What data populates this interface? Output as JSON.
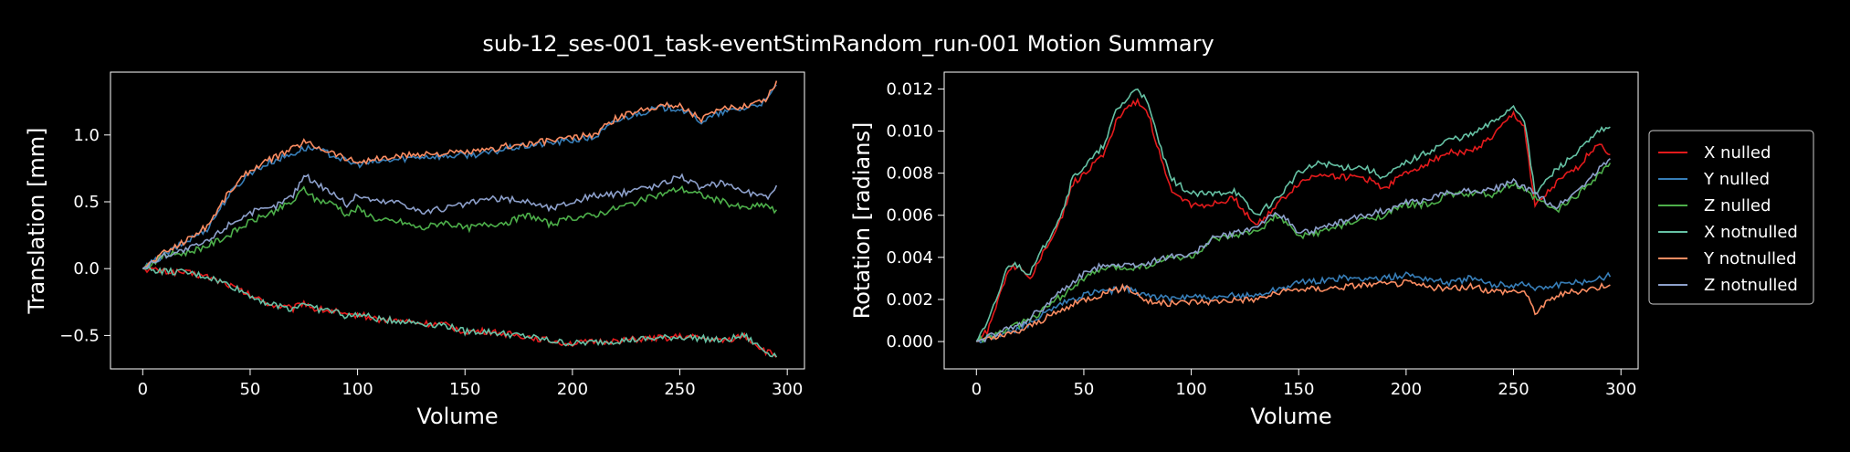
{
  "figure": {
    "title": "sub-12_ses-001_task-eventStimRandom_run-001 Motion Summary",
    "background": "#000000",
    "text_color": "#ffffff"
  },
  "series_colors": {
    "X nulled": "#e41a1c",
    "Y nulled": "#377eb8",
    "Z nulled": "#4daf4a",
    "X notnulled": "#66c2a5",
    "Y notnulled": "#fc8d62",
    "Z notnulled": "#8da0cb"
  },
  "chart_data": [
    {
      "type": "line",
      "xlabel": "Volume",
      "ylabel": "Translation [mm]",
      "xlim": [
        -15,
        308
      ],
      "ylim": [
        -0.75,
        1.47
      ],
      "xticks": [
        0,
        50,
        100,
        150,
        200,
        250,
        300
      ],
      "yticks": [
        -0.5,
        0.0,
        0.5,
        1.0
      ],
      "ytick_labels": [
        "−0.5",
        "0.0",
        "0.5",
        "1.0"
      ],
      "series": [
        {
          "name": "X nulled",
          "x": [
            0,
            10,
            20,
            30,
            40,
            50,
            60,
            70,
            75,
            80,
            90,
            95,
            100,
            110,
            120,
            130,
            140,
            150,
            160,
            170,
            180,
            190,
            200,
            210,
            220,
            230,
            240,
            250,
            260,
            270,
            280,
            290,
            295
          ],
          "y": [
            0,
            -0.02,
            -0.03,
            -0.06,
            -0.12,
            -0.2,
            -0.27,
            -0.3,
            -0.25,
            -0.3,
            -0.32,
            -0.36,
            -0.34,
            -0.38,
            -0.39,
            -0.41,
            -0.42,
            -0.47,
            -0.47,
            -0.49,
            -0.51,
            -0.54,
            -0.56,
            -0.55,
            -0.54,
            -0.53,
            -0.52,
            -0.51,
            -0.52,
            -0.54,
            -0.5,
            -0.62,
            -0.65
          ]
        },
        {
          "name": "Y nulled",
          "x": [
            0,
            10,
            20,
            30,
            40,
            50,
            60,
            70,
            75,
            80,
            90,
            95,
            100,
            110,
            120,
            130,
            140,
            150,
            160,
            170,
            180,
            190,
            200,
            210,
            220,
            230,
            240,
            250,
            255,
            260,
            270,
            280,
            290,
            295
          ],
          "y": [
            0,
            0.1,
            0.2,
            0.3,
            0.55,
            0.72,
            0.8,
            0.86,
            0.9,
            0.9,
            0.84,
            0.8,
            0.78,
            0.8,
            0.82,
            0.84,
            0.84,
            0.85,
            0.86,
            0.9,
            0.92,
            0.94,
            0.96,
            0.98,
            1.1,
            1.16,
            1.2,
            1.2,
            1.15,
            1.1,
            1.17,
            1.2,
            1.25,
            1.37
          ]
        },
        {
          "name": "Z nulled",
          "x": [
            0,
            10,
            20,
            30,
            40,
            50,
            60,
            70,
            75,
            80,
            90,
            95,
            100,
            110,
            120,
            130,
            140,
            150,
            160,
            170,
            180,
            190,
            200,
            210,
            220,
            230,
            240,
            250,
            260,
            270,
            280,
            290,
            295
          ],
          "y": [
            0,
            0.1,
            0.12,
            0.17,
            0.25,
            0.35,
            0.42,
            0.5,
            0.6,
            0.52,
            0.48,
            0.4,
            0.45,
            0.36,
            0.35,
            0.3,
            0.35,
            0.3,
            0.33,
            0.35,
            0.4,
            0.33,
            0.38,
            0.4,
            0.45,
            0.5,
            0.55,
            0.6,
            0.55,
            0.5,
            0.45,
            0.48,
            0.42
          ]
        },
        {
          "name": "X notnulled",
          "x": [
            0,
            10,
            20,
            30,
            40,
            50,
            60,
            70,
            75,
            80,
            90,
            95,
            100,
            110,
            120,
            130,
            140,
            150,
            160,
            170,
            180,
            190,
            200,
            210,
            220,
            230,
            240,
            250,
            260,
            270,
            280,
            290,
            295
          ],
          "y": [
            0,
            -0.02,
            -0.03,
            -0.06,
            -0.12,
            -0.2,
            -0.27,
            -0.3,
            -0.25,
            -0.3,
            -0.32,
            -0.36,
            -0.34,
            -0.38,
            -0.39,
            -0.41,
            -0.42,
            -0.47,
            -0.47,
            -0.49,
            -0.51,
            -0.54,
            -0.56,
            -0.55,
            -0.54,
            -0.53,
            -0.52,
            -0.51,
            -0.52,
            -0.54,
            -0.5,
            -0.62,
            -0.65
          ]
        },
        {
          "name": "Y notnulled",
          "x": [
            0,
            10,
            20,
            30,
            40,
            50,
            60,
            70,
            75,
            80,
            90,
            95,
            100,
            110,
            120,
            130,
            140,
            150,
            160,
            170,
            180,
            190,
            200,
            210,
            220,
            230,
            240,
            250,
            255,
            260,
            270,
            280,
            290,
            295
          ],
          "y": [
            0,
            0.12,
            0.21,
            0.32,
            0.57,
            0.74,
            0.82,
            0.9,
            0.95,
            0.92,
            0.86,
            0.82,
            0.8,
            0.82,
            0.84,
            0.86,
            0.86,
            0.87,
            0.88,
            0.92,
            0.93,
            0.96,
            0.98,
            1.0,
            1.12,
            1.18,
            1.22,
            1.22,
            1.17,
            1.12,
            1.19,
            1.22,
            1.27,
            1.4
          ]
        },
        {
          "name": "Z notnulled",
          "x": [
            0,
            10,
            20,
            30,
            40,
            50,
            60,
            70,
            75,
            80,
            90,
            95,
            100,
            110,
            120,
            130,
            140,
            150,
            160,
            170,
            180,
            190,
            200,
            210,
            220,
            230,
            240,
            250,
            260,
            270,
            280,
            290,
            295
          ],
          "y": [
            0,
            0.1,
            0.14,
            0.2,
            0.33,
            0.42,
            0.45,
            0.55,
            0.7,
            0.65,
            0.55,
            0.48,
            0.55,
            0.5,
            0.5,
            0.42,
            0.45,
            0.48,
            0.52,
            0.52,
            0.5,
            0.45,
            0.5,
            0.55,
            0.55,
            0.6,
            0.62,
            0.7,
            0.6,
            0.65,
            0.58,
            0.53,
            0.6
          ]
        }
      ]
    },
    {
      "type": "line",
      "xlabel": "Volume",
      "ylabel": "Rotation [radians]",
      "xlim": [
        -15,
        308
      ],
      "ylim": [
        -0.0013,
        0.0128
      ],
      "xticks": [
        0,
        50,
        100,
        150,
        200,
        250,
        300
      ],
      "yticks": [
        0.0,
        0.002,
        0.004,
        0.006,
        0.008,
        0.01,
        0.012
      ],
      "ytick_labels": [
        "0.000",
        "0.002",
        "0.004",
        "0.006",
        "0.008",
        "0.010",
        "0.012"
      ],
      "legend": {
        "placement": "right, outside"
      },
      "series": [
        {
          "name": "X nulled",
          "x": [
            0,
            5,
            10,
            15,
            20,
            25,
            30,
            35,
            40,
            45,
            50,
            55,
            60,
            65,
            70,
            75,
            80,
            85,
            90,
            100,
            110,
            120,
            130,
            140,
            150,
            160,
            170,
            180,
            190,
            200,
            210,
            220,
            230,
            240,
            250,
            255,
            260,
            270,
            280,
            290,
            295
          ],
          "y": [
            0,
            0.0005,
            0.002,
            0.0035,
            0.0035,
            0.003,
            0.004,
            0.005,
            0.006,
            0.0075,
            0.008,
            0.0085,
            0.009,
            0.0105,
            0.011,
            0.0115,
            0.0108,
            0.009,
            0.0073,
            0.0065,
            0.0065,
            0.0068,
            0.0055,
            0.0065,
            0.0075,
            0.008,
            0.0078,
            0.0078,
            0.0073,
            0.008,
            0.0085,
            0.009,
            0.009,
            0.0097,
            0.0108,
            0.0102,
            0.0064,
            0.0075,
            0.0083,
            0.0095,
            0.0088
          ]
        },
        {
          "name": "Y nulled",
          "x": [
            0,
            10,
            20,
            30,
            40,
            50,
            60,
            70,
            80,
            90,
            100,
            110,
            120,
            130,
            140,
            150,
            160,
            170,
            180,
            190,
            200,
            210,
            220,
            230,
            240,
            250,
            255,
            260,
            270,
            280,
            290,
            295
          ],
          "y": [
            0,
            0.0003,
            0.0006,
            0.0012,
            0.0018,
            0.0022,
            0.0024,
            0.0025,
            0.0022,
            0.002,
            0.0022,
            0.002,
            0.0022,
            0.0022,
            0.0025,
            0.0028,
            0.0029,
            0.003,
            0.003,
            0.003,
            0.0032,
            0.003,
            0.0028,
            0.003,
            0.0027,
            0.0027,
            0.0028,
            0.0025,
            0.0027,
            0.0028,
            0.003,
            0.0032
          ]
        },
        {
          "name": "Z nulled",
          "x": [
            0,
            10,
            20,
            30,
            40,
            50,
            60,
            70,
            80,
            90,
            100,
            110,
            120,
            130,
            140,
            150,
            160,
            170,
            180,
            190,
            200,
            210,
            220,
            230,
            240,
            250,
            260,
            270,
            280,
            290,
            295
          ],
          "y": [
            0,
            0.0004,
            0.0008,
            0.0014,
            0.0022,
            0.003,
            0.0035,
            0.0035,
            0.0036,
            0.004,
            0.004,
            0.0048,
            0.005,
            0.0052,
            0.006,
            0.005,
            0.0052,
            0.0055,
            0.0058,
            0.006,
            0.0065,
            0.0065,
            0.007,
            0.007,
            0.007,
            0.0075,
            0.0068,
            0.0062,
            0.007,
            0.008,
            0.0085
          ]
        },
        {
          "name": "X notnulled",
          "x": [
            0,
            5,
            10,
            15,
            20,
            25,
            30,
            35,
            40,
            45,
            50,
            55,
            60,
            65,
            70,
            75,
            80,
            85,
            90,
            100,
            110,
            120,
            130,
            140,
            150,
            160,
            170,
            180,
            190,
            200,
            210,
            220,
            230,
            240,
            250,
            255,
            260,
            270,
            280,
            290,
            295
          ],
          "y": [
            0,
            0.0008,
            0.0022,
            0.0037,
            0.0036,
            0.0032,
            0.0042,
            0.0052,
            0.0062,
            0.0078,
            0.0083,
            0.0088,
            0.0094,
            0.011,
            0.0115,
            0.0121,
            0.0112,
            0.0095,
            0.0078,
            0.007,
            0.007,
            0.0072,
            0.006,
            0.0068,
            0.008,
            0.0085,
            0.0083,
            0.0083,
            0.0078,
            0.0085,
            0.009,
            0.0096,
            0.0098,
            0.0104,
            0.0112,
            0.0106,
            0.007,
            0.0082,
            0.009,
            0.01,
            0.0101
          ]
        },
        {
          "name": "Y notnulled",
          "x": [
            0,
            10,
            20,
            30,
            40,
            50,
            60,
            70,
            80,
            90,
            100,
            110,
            120,
            130,
            140,
            150,
            160,
            170,
            180,
            190,
            200,
            210,
            220,
            230,
            240,
            250,
            255,
            260,
            270,
            280,
            290,
            295
          ],
          "y": [
            0,
            0.0002,
            0.0005,
            0.001,
            0.0015,
            0.002,
            0.0023,
            0.0026,
            0.0019,
            0.0018,
            0.0019,
            0.0019,
            0.002,
            0.002,
            0.0023,
            0.0025,
            0.0025,
            0.0026,
            0.0027,
            0.0027,
            0.0028,
            0.0026,
            0.0025,
            0.0026,
            0.0024,
            0.0024,
            0.0024,
            0.0014,
            0.0022,
            0.0024,
            0.0026,
            0.0028
          ]
        },
        {
          "name": "Z notnulled",
          "x": [
            0,
            10,
            20,
            30,
            40,
            50,
            60,
            70,
            80,
            90,
            100,
            110,
            120,
            130,
            140,
            150,
            160,
            170,
            180,
            190,
            200,
            210,
            220,
            230,
            240,
            250,
            260,
            270,
            280,
            290,
            295
          ],
          "y": [
            0,
            0.0004,
            0.0008,
            0.0015,
            0.0024,
            0.0032,
            0.0037,
            0.0036,
            0.0037,
            0.0041,
            0.0041,
            0.0049,
            0.0051,
            0.0054,
            0.0062,
            0.0052,
            0.0053,
            0.0057,
            0.006,
            0.0062,
            0.0066,
            0.0067,
            0.0071,
            0.0072,
            0.0072,
            0.0076,
            0.007,
            0.0064,
            0.0072,
            0.0082,
            0.0087
          ]
        }
      ]
    }
  ]
}
